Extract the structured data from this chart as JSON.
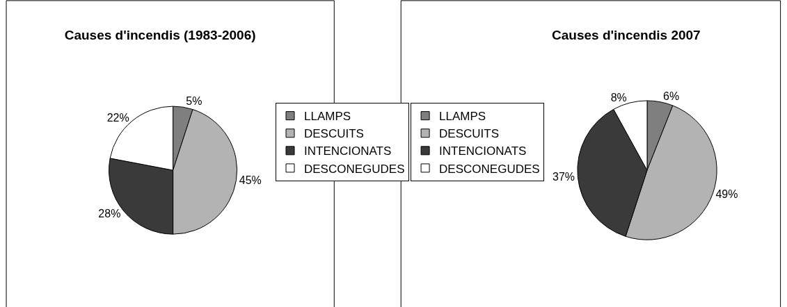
{
  "chart_data": [
    {
      "type": "pie",
      "title": "Causes d'incendis (1983-2006)",
      "categories": [
        "LLAMPS",
        "DESCUITS",
        "INTENCIONATS",
        "DESCONEGUDES"
      ],
      "values": [
        5,
        45,
        28,
        22
      ],
      "value_labels": [
        "5%",
        "45%",
        "28%",
        "22%"
      ],
      "colors": [
        "#7f7f7f",
        "#b3b3b3",
        "#3a3a3a",
        "#ffffff"
      ],
      "legend": "right"
    },
    {
      "type": "pie",
      "title": "Causes d'incendis 2007",
      "categories": [
        "LLAMPS",
        "DESCUITS",
        "INTENCIONATS",
        "DESCONEGUDES"
      ],
      "values": [
        6,
        49,
        37,
        8
      ],
      "value_labels": [
        "6%",
        "49%",
        "37%",
        "8%"
      ],
      "colors": [
        "#7f7f7f",
        "#b3b3b3",
        "#3a3a3a",
        "#ffffff"
      ],
      "legend": "left"
    }
  ]
}
